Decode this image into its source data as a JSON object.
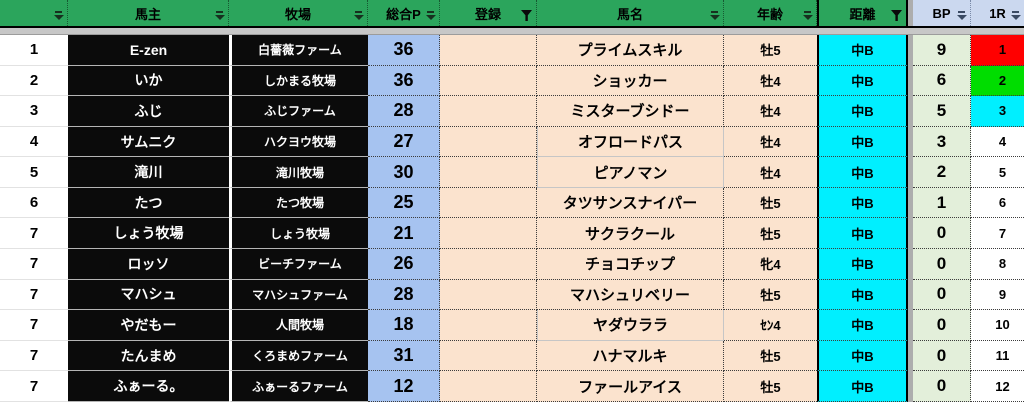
{
  "table": {
    "columns": [
      {
        "key": "rank",
        "label": "",
        "filter": "dropdown"
      },
      {
        "key": "owner",
        "label": "馬主",
        "filter": "dropdown"
      },
      {
        "key": "farm",
        "label": "牧場",
        "filter": "dropdown"
      },
      {
        "key": "total_p",
        "label": "総合P",
        "filter": "dropdown"
      },
      {
        "key": "reg",
        "label": "登録",
        "filter": "funnel"
      },
      {
        "key": "horse",
        "label": "馬名",
        "filter": "dropdown"
      },
      {
        "key": "age",
        "label": "年齢",
        "filter": "dropdown"
      },
      {
        "key": "dist",
        "label": "距離",
        "filter": "funnel"
      },
      {
        "key": "bp",
        "label": "BP",
        "filter": "dropdown"
      },
      {
        "key": "r1",
        "label": "1R",
        "filter": "dropdown"
      }
    ],
    "rows": [
      {
        "rank": "1",
        "owner": "E-zen",
        "farm": "白薔薇ファーム",
        "total_p": "36",
        "reg": "",
        "horse": "プライムスキル",
        "age": "牡5",
        "dist": "中B",
        "bp": "9",
        "r1": "1",
        "r1_bg": "#FF0000"
      },
      {
        "rank": "2",
        "owner": "いか",
        "farm": "しかまる牧場",
        "total_p": "36",
        "reg": "",
        "horse": "ショッカー",
        "age": "牡4",
        "dist": "中B",
        "bp": "6",
        "r1": "2",
        "r1_bg": "#00DD00"
      },
      {
        "rank": "3",
        "owner": "ふじ",
        "farm": "ふじファーム",
        "total_p": "28",
        "reg": "",
        "horse": "ミスターブシドー",
        "age": "牡4",
        "dist": "中B",
        "bp": "5",
        "r1": "3",
        "r1_bg": "#00EFFF"
      },
      {
        "rank": "4",
        "owner": "サムニク",
        "farm": "ハクヨウ牧場",
        "total_p": "27",
        "reg": "",
        "horse": "オフロードパス",
        "age": "牡4",
        "dist": "中B",
        "bp": "3",
        "r1": "4",
        "r1_bg": "#FFFFFF",
        "horse_plain": true
      },
      {
        "rank": "5",
        "owner": "滝川",
        "farm": "滝川牧場",
        "total_p": "30",
        "reg": "",
        "horse": "ピアノマン",
        "age": "牡4",
        "dist": "中B",
        "bp": "2",
        "r1": "5",
        "r1_bg": "#FFFFFF",
        "horse_plain": true
      },
      {
        "rank": "6",
        "owner": "たつ",
        "farm": "たつ牧場",
        "total_p": "25",
        "reg": "",
        "horse": "タツサンスナイパー",
        "age": "牡5",
        "dist": "中B",
        "bp": "1",
        "r1": "6",
        "r1_bg": "#FFFFFF"
      },
      {
        "rank": "7",
        "owner": "しょう牧場",
        "farm": "しょう牧場",
        "total_p": "21",
        "reg": "",
        "horse": "サクラクール",
        "age": "牡5",
        "dist": "中B",
        "bp": "0",
        "r1": "7",
        "r1_bg": "#FFFFFF"
      },
      {
        "rank": "7",
        "owner": "ロッソ",
        "farm": "ビーチファーム",
        "total_p": "26",
        "reg": "",
        "horse": "チョコチップ",
        "age": "牝4",
        "dist": "中B",
        "bp": "0",
        "r1": "8",
        "r1_bg": "#FFFFFF"
      },
      {
        "rank": "7",
        "owner": "マハシュ",
        "farm": "マハシュファーム",
        "total_p": "28",
        "reg": "",
        "horse": "マハシュリベリー",
        "age": "牡5",
        "dist": "中B",
        "bp": "0",
        "r1": "9",
        "r1_bg": "#FFFFFF"
      },
      {
        "rank": "7",
        "owner": "やだもー",
        "farm": "人間牧場",
        "total_p": "18",
        "reg": "",
        "horse": "ヤダウララ",
        "age": "ｾﾝ4",
        "dist": "中B",
        "bp": "0",
        "r1": "10",
        "r1_bg": "#FFFFFF",
        "horse_plain": true
      },
      {
        "rank": "7",
        "owner": "たんまめ",
        "farm": "くろまめファーム",
        "total_p": "31",
        "reg": "",
        "horse": "ハナマルキ",
        "age": "牡5",
        "dist": "中B",
        "bp": "0",
        "r1": "11",
        "r1_bg": "#FFFFFF"
      },
      {
        "rank": "7",
        "owner": "ふぁーる。",
        "farm": "ふぁーるファーム",
        "total_p": "12",
        "reg": "",
        "horse": "ファールアイス",
        "age": "牡5",
        "dist": "中B",
        "bp": "0",
        "r1": "12",
        "r1_bg": "#FFFFFF"
      }
    ]
  },
  "colors": {
    "header_green": "#2BA55C",
    "header_lavender": "#CBD8EF",
    "owner_farm_black": "#0B0B0B",
    "total_p_blue": "#A6C3F0",
    "entry_peach": "#FBE3CE",
    "distance_cyan": "#00EFFF",
    "bp_green": "#E3EFDA",
    "r1_red": "#FF0000",
    "r1_green": "#00DD00",
    "r1_cyan": "#00EFFF"
  }
}
